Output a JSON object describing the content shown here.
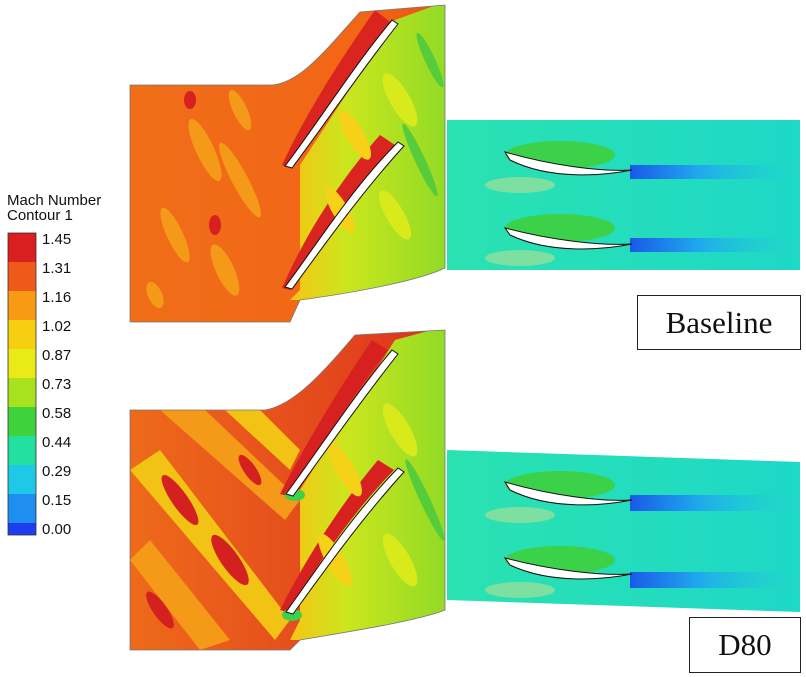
{
  "legend": {
    "title": "Mach Number",
    "subtitle": "Contour 1",
    "ticks": [
      "1.45",
      "1.31",
      "1.16",
      "1.02",
      "0.87",
      "0.73",
      "0.58",
      "0.44",
      "0.29",
      "0.15",
      "0.00"
    ],
    "colors": [
      "#d91f1f",
      "#ef5a1a",
      "#f79a14",
      "#f6cf12",
      "#e9ea18",
      "#a8e21e",
      "#3fd23a",
      "#22e0a0",
      "#20c8e8",
      "#1e8ef0",
      "#1e3cf0"
    ]
  },
  "panels": {
    "baseline": {
      "label": "Baseline"
    },
    "d80": {
      "label": "D80"
    }
  },
  "colors": {
    "stator_inlet": "#ef6a18",
    "stator_inlet_d80": "#e8501c",
    "stator_outlet": "#a9df2a",
    "rotor_field": "#27e2b0",
    "rotor_wake": "#1f7fe8",
    "blade": "#ffffff"
  }
}
